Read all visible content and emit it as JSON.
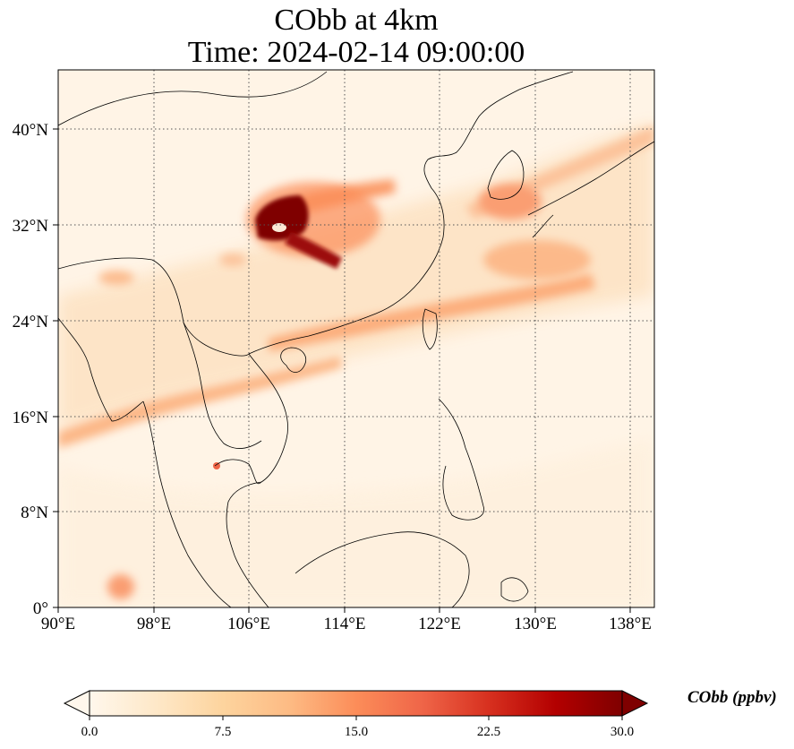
{
  "title": {
    "line1": "CObb at 4km",
    "line2": "Time: 2024-02-14 09:00:00"
  },
  "map": {
    "projection": "PlateCarree",
    "lon_range": [
      90,
      140
    ],
    "lat_range": [
      0,
      44
    ],
    "gridlines": "dotted",
    "lon_ticks": [
      {
        "value": 90,
        "label": "90°E"
      },
      {
        "value": 98,
        "label": "98°E"
      },
      {
        "value": 106,
        "label": "106°E"
      },
      {
        "value": 114,
        "label": "114°E"
      },
      {
        "value": 122,
        "label": "122°E"
      },
      {
        "value": 130,
        "label": "130°E"
      },
      {
        "value": 138,
        "label": "138°E"
      }
    ],
    "lat_ticks": [
      {
        "value": 0,
        "label": "0°"
      },
      {
        "value": 8,
        "label": "8°N"
      },
      {
        "value": 16,
        "label": "16°N"
      },
      {
        "value": 24,
        "label": "24°N"
      },
      {
        "value": 32,
        "label": "32°N"
      },
      {
        "value": 40,
        "label": "40°N"
      }
    ],
    "field_features": [
      {
        "name": "central-china-max",
        "lon": 108.5,
        "lat": 32.5,
        "level": 30
      },
      {
        "name": "hunan-spur",
        "lon": 112.5,
        "lat": 29.5,
        "level": 27
      },
      {
        "name": "china-coast-plume",
        "lon": 112,
        "lat": 23,
        "level": 12
      },
      {
        "name": "south-japan-plume",
        "lon": 132,
        "lat": 28.5,
        "level": 11
      },
      {
        "name": "korea-japan-plume",
        "lon": 130,
        "lat": 34,
        "level": 10
      },
      {
        "name": "myanmar-plume",
        "lon": 93,
        "lat": 15,
        "level": 10
      },
      {
        "name": "sumatra-patch",
        "lon": 95,
        "lat": 1.5,
        "level": 9
      }
    ]
  },
  "colorbar": {
    "colormap": "OrRd",
    "colors": [
      "#fff7ec",
      "#fee8c8",
      "#fdd49e",
      "#fdbb84",
      "#fc8d59",
      "#ef6548",
      "#d7301f",
      "#b30000",
      "#7f0000"
    ],
    "min": 0,
    "max": 30,
    "extend": "both",
    "ticks": [
      "0.0",
      "7.5",
      "15.0",
      "22.5",
      "30.0"
    ],
    "label": "CObb (ppbv)"
  }
}
